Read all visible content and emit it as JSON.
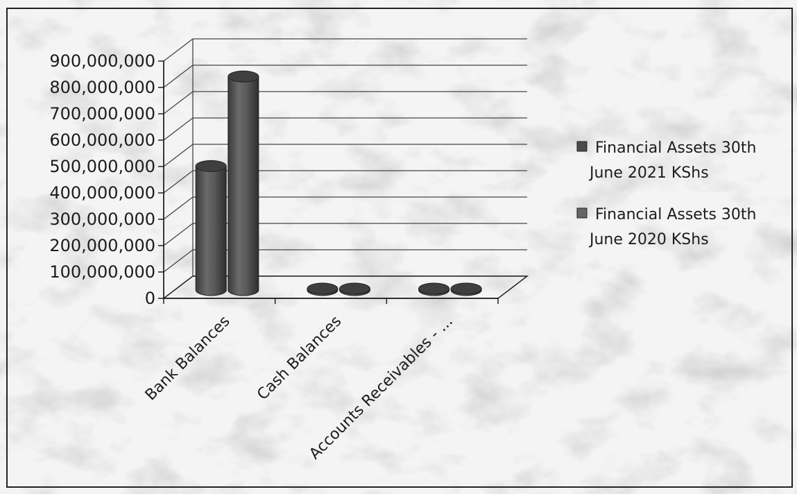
{
  "chart_data": {
    "type": "bar",
    "style": "3d-cylinder",
    "categories": [
      "Bank Balances",
      "Cash Balances",
      "Accounts Receivables - ..."
    ],
    "series": [
      {
        "name": "Financial Assets 30th June 2021 KShs",
        "values": [
          470000000,
          300000,
          200000
        ]
      },
      {
        "name": "Financial Assets 30th June 2020 KShs",
        "values": [
          810000000,
          500000,
          300000
        ]
      }
    ],
    "y_ticks": [
      "0",
      "100,000,000",
      "200,000,000",
      "300,000,000",
      "400,000,000",
      "500,000,000",
      "600,000,000",
      "700,000,000",
      "800,000,000",
      "900,000,000"
    ],
    "ylim": [
      0,
      900000000
    ],
    "grid": true,
    "legend_position": "right",
    "title": "",
    "xlabel": "",
    "ylabel": ""
  },
  "colors": {
    "bar_side": "#5b5b5b",
    "bar_top": "#3f3f3f",
    "grid": "#444444",
    "marble_vein": "#7a7a7a"
  }
}
